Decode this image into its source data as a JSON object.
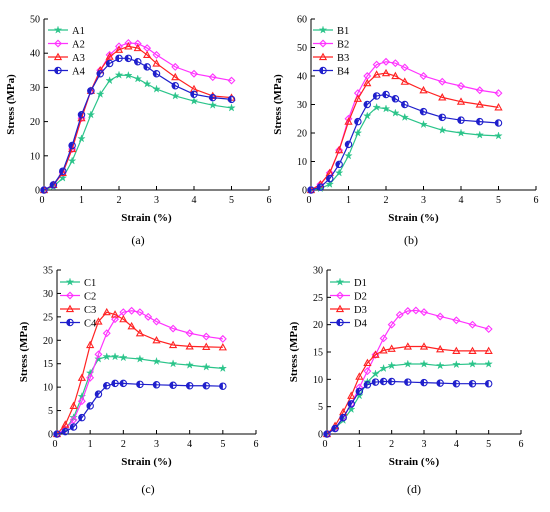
{
  "figure": {
    "charts": [
      {
        "id": "a",
        "panel_label": "(a)"
      },
      {
        "id": "b",
        "panel_label": "(b)"
      },
      {
        "id": "c",
        "panel_label": "(c)"
      },
      {
        "id": "d",
        "panel_label": "(d)"
      }
    ]
  },
  "chart_data": [
    {
      "type": "line",
      "panel_label": "(a)",
      "xlabel": "Strain (%)",
      "ylabel": "Stress (MPa)",
      "xlim": [
        0,
        6
      ],
      "ylim": [
        0,
        50
      ],
      "xticks": [
        1,
        2,
        3,
        4,
        5,
        6
      ],
      "yticks": [
        0,
        10,
        20,
        30,
        40,
        50
      ],
      "legend_position": "top-left",
      "grid": false,
      "series": [
        {
          "name": "A1",
          "color": "#2bc48a",
          "marker": "star",
          "x": [
            0,
            0.25,
            0.5,
            0.75,
            1.0,
            1.25,
            1.5,
            1.75,
            2.0,
            2.25,
            2.5,
            2.75,
            3.0,
            3.5,
            4.0,
            4.5,
            5.0
          ],
          "y": [
            0,
            1,
            3.5,
            8.5,
            15,
            22,
            28,
            32,
            33.6,
            33.5,
            32.5,
            31,
            29.5,
            27.5,
            26,
            24.8,
            24
          ]
        },
        {
          "name": "A2",
          "color": "#ff33ff",
          "marker": "diamond",
          "x": [
            0,
            0.25,
            0.5,
            0.75,
            1.0,
            1.25,
            1.5,
            1.75,
            2.0,
            2.25,
            2.5,
            2.75,
            3.0,
            3.5,
            4.0,
            4.5,
            5.0
          ],
          "y": [
            0,
            1.5,
            5,
            12,
            21,
            29,
            35,
            39.5,
            42,
            43,
            42.8,
            41.5,
            39.5,
            36,
            34,
            33,
            32
          ]
        },
        {
          "name": "A3",
          "color": "#ff2222",
          "marker": "triangle",
          "x": [
            0,
            0.25,
            0.5,
            0.75,
            1.0,
            1.25,
            1.5,
            1.75,
            2.0,
            2.25,
            2.5,
            2.75,
            3.0,
            3.5,
            4.0,
            4.5,
            5.0
          ],
          "y": [
            0,
            1.5,
            5,
            12,
            21,
            29,
            35,
            39,
            41,
            42,
            41.5,
            39.5,
            37,
            33,
            29.5,
            27.5,
            27
          ]
        },
        {
          "name": "A4",
          "color": "#1f1fcc",
          "marker": "half-circle",
          "x": [
            0,
            0.25,
            0.5,
            0.75,
            1.0,
            1.25,
            1.5,
            1.75,
            2.0,
            2.25,
            2.5,
            2.75,
            3.0,
            3.5,
            4.0,
            4.5,
            5.0
          ],
          "y": [
            0,
            1.5,
            5.5,
            13,
            22,
            29,
            34,
            37,
            38.5,
            38.5,
            37.5,
            36,
            34,
            30.5,
            28,
            27,
            26.5
          ]
        }
      ]
    },
    {
      "type": "line",
      "panel_label": "(b)",
      "xlabel": "Strain (%)",
      "ylabel": "Stress (MPa)",
      "xlim": [
        0,
        6
      ],
      "ylim": [
        0,
        60
      ],
      "xticks": [
        1,
        2,
        3,
        4,
        5,
        6
      ],
      "yticks": [
        0,
        10,
        20,
        30,
        40,
        50,
        60
      ],
      "legend_position": "top-left",
      "grid": false,
      "series": [
        {
          "name": "B1",
          "color": "#2bc48a",
          "marker": "star",
          "x": [
            0,
            0.25,
            0.5,
            0.75,
            1.0,
            1.25,
            1.5,
            1.75,
            2.0,
            2.25,
            2.5,
            3.0,
            3.5,
            4.0,
            4.5,
            5.0
          ],
          "y": [
            0,
            0.5,
            2,
            6,
            12,
            20,
            26,
            29,
            28.5,
            27,
            25.5,
            23,
            21,
            20,
            19.3,
            19
          ]
        },
        {
          "name": "B2",
          "color": "#ff33ff",
          "marker": "diamond",
          "x": [
            0,
            0.25,
            0.5,
            0.75,
            1.0,
            1.25,
            1.5,
            1.75,
            2.0,
            2.25,
            2.5,
            3.0,
            3.5,
            4.0,
            4.5,
            5.0
          ],
          "y": [
            0,
            2,
            6,
            14,
            25,
            34,
            40,
            44,
            45,
            44.5,
            43,
            40,
            38,
            36.5,
            35,
            34
          ]
        },
        {
          "name": "B3",
          "color": "#ff2222",
          "marker": "triangle",
          "x": [
            0,
            0.25,
            0.5,
            0.75,
            1.0,
            1.25,
            1.5,
            1.75,
            2.0,
            2.25,
            2.5,
            3.0,
            3.5,
            4.0,
            4.5,
            5.0
          ],
          "y": [
            0,
            2,
            6,
            14,
            24,
            32,
            37.5,
            40.5,
            41,
            40,
            38,
            35,
            32.5,
            31,
            30,
            29
          ]
        },
        {
          "name": "B4",
          "color": "#1f1fcc",
          "marker": "half-circle",
          "x": [
            0,
            0.25,
            0.5,
            0.75,
            1.0,
            1.25,
            1.5,
            1.75,
            2.0,
            2.25,
            2.5,
            3.0,
            3.5,
            4.0,
            4.5,
            5.0
          ],
          "y": [
            0,
            1,
            4,
            9,
            16,
            24,
            30,
            33,
            33.5,
            32,
            30,
            27.5,
            25.5,
            24.5,
            24,
            23.5
          ]
        }
      ]
    },
    {
      "type": "line",
      "panel_label": "(c)",
      "xlabel": "Strain (%)",
      "ylabel": "Stress (MPa)",
      "xlim": [
        0,
        6
      ],
      "ylim": [
        0,
        35
      ],
      "xticks": [
        1,
        2,
        3,
        4,
        5,
        6
      ],
      "yticks": [
        0,
        5,
        10,
        15,
        20,
        25,
        30,
        35
      ],
      "legend_position": "top-left",
      "grid": false,
      "series": [
        {
          "name": "C1",
          "color": "#2bc48a",
          "marker": "star",
          "x": [
            0,
            0.25,
            0.5,
            0.75,
            1.0,
            1.25,
            1.5,
            1.75,
            2.0,
            2.5,
            3.0,
            3.5,
            4.0,
            4.5,
            5.0
          ],
          "y": [
            0,
            1,
            3.5,
            8,
            13,
            16,
            16.5,
            16.5,
            16.3,
            16,
            15.5,
            15,
            14.7,
            14.3,
            14
          ]
        },
        {
          "name": "C2",
          "color": "#ff33ff",
          "marker": "diamond",
          "x": [
            0,
            0.25,
            0.5,
            0.75,
            1.0,
            1.25,
            1.5,
            1.75,
            2.0,
            2.25,
            2.5,
            2.75,
            3.0,
            3.5,
            4.0,
            4.5,
            5.0
          ],
          "y": [
            0,
            1,
            3,
            7,
            12,
            17,
            21.5,
            24.5,
            26,
            26.3,
            26,
            25,
            24,
            22.5,
            21.5,
            20.8,
            20.3
          ]
        },
        {
          "name": "C3",
          "color": "#ff2222",
          "marker": "triangle",
          "x": [
            0,
            0.25,
            0.5,
            0.75,
            1.0,
            1.25,
            1.5,
            1.75,
            2.0,
            2.25,
            2.5,
            3.0,
            3.5,
            4.0,
            4.5,
            5.0
          ],
          "y": [
            0,
            2,
            6,
            12,
            19,
            24,
            26,
            25.5,
            24.5,
            23,
            21.5,
            20,
            19,
            18.7,
            18.6,
            18.5
          ]
        },
        {
          "name": "C4",
          "color": "#1f1fcc",
          "marker": "half-circle",
          "x": [
            0,
            0.25,
            0.5,
            0.75,
            1.0,
            1.25,
            1.5,
            1.75,
            2.0,
            2.5,
            3.0,
            3.5,
            4.0,
            4.5,
            5.0
          ],
          "y": [
            0,
            0.5,
            1.5,
            3.5,
            6,
            8.5,
            10.3,
            10.8,
            10.8,
            10.6,
            10.5,
            10.4,
            10.3,
            10.3,
            10.2
          ]
        }
      ]
    },
    {
      "type": "line",
      "panel_label": "(d)",
      "xlabel": "Strain (%)",
      "ylabel": "Stress (MPa)",
      "xlim": [
        0,
        6
      ],
      "ylim": [
        0,
        30
      ],
      "xticks": [
        1,
        2,
        3,
        4,
        5,
        6
      ],
      "yticks": [
        0,
        5,
        10,
        15,
        20,
        25,
        30
      ],
      "legend_position": "top-left",
      "grid": false,
      "series": [
        {
          "name": "D1",
          "color": "#2bc48a",
          "marker": "star",
          "x": [
            0,
            0.25,
            0.5,
            0.75,
            1.0,
            1.25,
            1.5,
            1.75,
            2.0,
            2.5,
            3.0,
            3.5,
            4.0,
            4.5,
            5.0
          ],
          "y": [
            0,
            1,
            2.5,
            4.5,
            7,
            9.5,
            11,
            12,
            12.5,
            12.8,
            12.8,
            12.5,
            12.7,
            12.8,
            12.8
          ]
        },
        {
          "name": "D2",
          "color": "#ff33ff",
          "marker": "diamond",
          "x": [
            0,
            0.25,
            0.5,
            0.75,
            1.0,
            1.25,
            1.5,
            1.75,
            2.0,
            2.25,
            2.5,
            2.75,
            3.0,
            3.5,
            4.0,
            4.5,
            5.0
          ],
          "y": [
            0,
            1,
            3,
            5.5,
            8.5,
            11.5,
            14.5,
            17.5,
            20,
            21.8,
            22.5,
            22.6,
            22.3,
            21.5,
            20.8,
            20,
            19.2
          ]
        },
        {
          "name": "D3",
          "color": "#ff2222",
          "marker": "triangle",
          "x": [
            0,
            0.25,
            0.5,
            0.75,
            1.0,
            1.25,
            1.5,
            1.75,
            2.0,
            2.5,
            3.0,
            3.5,
            4.0,
            4.5,
            5.0
          ],
          "y": [
            0,
            1.5,
            4,
            7,
            10.5,
            13,
            14.5,
            15.3,
            15.6,
            16,
            16,
            15.5,
            15.2,
            15.2,
            15.2
          ]
        },
        {
          "name": "D4",
          "color": "#1f1fcc",
          "marker": "half-circle",
          "x": [
            0,
            0.25,
            0.5,
            0.75,
            1.0,
            1.25,
            1.5,
            1.75,
            2.0,
            2.5,
            3.0,
            3.5,
            4.0,
            4.5,
            5.0
          ],
          "y": [
            0,
            1,
            3,
            5.5,
            7.8,
            9,
            9.5,
            9.6,
            9.6,
            9.5,
            9.4,
            9.3,
            9.2,
            9.2,
            9.2
          ]
        }
      ]
    }
  ]
}
